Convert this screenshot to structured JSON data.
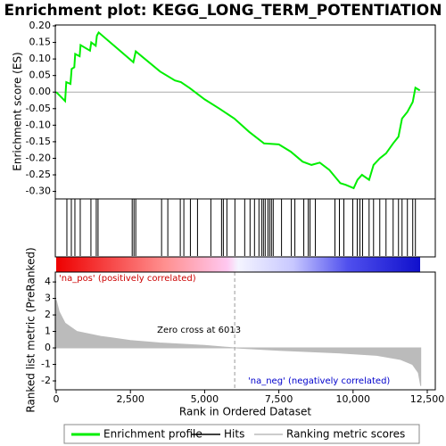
{
  "chart_data": [
    {
      "type": "line",
      "title": "Enrichment plot: KEGG_LONG_TERM_POTENTIATION",
      "ylabel": "Enrichment score (ES)",
      "xlim": [
        0,
        12770
      ],
      "ylim": [
        -0.32,
        0.2
      ],
      "yticks": [
        {
          "value": 0.2,
          "label": "0.20"
        },
        0.15,
        {
          "value": 0.1,
          "label": "0.10"
        },
        0.05,
        {
          "value": 0,
          "label": "0.00"
        },
        -0.05,
        {
          "value": -0.1,
          "label": "-0.10"
        },
        -0.15,
        {
          "value": -0.2,
          "label": "-0.20"
        },
        -0.25,
        {
          "value": -0.3,
          "label": "-0.30"
        }
      ],
      "x": [
        0,
        300,
        340,
        480,
        520,
        610,
        640,
        790,
        820,
        1140,
        1180,
        1330,
        1370,
        1430,
        2600,
        2680,
        3500,
        4000,
        4200,
        4500,
        5000,
        5500,
        6000,
        6500,
        7000,
        7500,
        7900,
        8300,
        8600,
        8880,
        9200,
        9570,
        9750,
        10020,
        10150,
        10300,
        10540,
        10690,
        10900,
        11110,
        11350,
        11530,
        11650,
        11830,
        12010,
        12100,
        12250
      ],
      "series": [
        {
          "name": "Enrichment profile",
          "color": "#00ee00",
          "values": [
            0,
            -0.027,
            0.03,
            0.025,
            0.07,
            0.075,
            0.115,
            0.108,
            0.142,
            0.125,
            0.15,
            0.14,
            0.17,
            0.18,
            0.09,
            0.123,
            0.062,
            0.035,
            0.03,
            0.012,
            -0.022,
            -0.05,
            -0.08,
            -0.12,
            -0.155,
            -0.158,
            -0.18,
            -0.21,
            -0.22,
            -0.213,
            -0.235,
            -0.275,
            -0.28,
            -0.29,
            -0.265,
            -0.25,
            -0.265,
            -0.22,
            -0.2,
            -0.185,
            -0.155,
            -0.135,
            -0.08,
            -0.06,
            -0.03,
            0.013,
            0.005
          ]
        }
      ]
    },
    {
      "type": "rug",
      "xlim": [
        0,
        12770
      ],
      "x": [
        360,
        510,
        630,
        810,
        1170,
        1350,
        1410,
        2560,
        2620,
        2680,
        3550,
        3760,
        4180,
        4300,
        4520,
        4760,
        5210,
        5570,
        5630,
        5750,
        6020,
        6350,
        6530,
        6680,
        6830,
        6920,
        6980,
        7040,
        7130,
        7190,
        7250,
        7310,
        7590,
        7920,
        8040,
        8340,
        8490,
        8550,
        8730,
        9390,
        9540,
        9690,
        9990,
        10140,
        10230,
        10320,
        10540,
        10690,
        10900,
        11110,
        11350,
        11530,
        11650,
        11830,
        12010,
        12100
      ],
      "series": [
        {
          "name": "Hits",
          "color": "#000000"
        }
      ]
    },
    {
      "type": "area",
      "xlabel": "Rank in Ordered Dataset",
      "ylabel": "Ranked list metric (PreRanked)",
      "xlim": [
        0,
        12770
      ],
      "ylim": [
        -2.54,
        4.6
      ],
      "xticks": [
        0,
        {
          "value": 2500,
          "label": "2,500"
        },
        {
          "value": 5000,
          "label": "5,000"
        },
        {
          "value": 7500,
          "label": "7,500"
        },
        {
          "value": 10000,
          "label": "10,000"
        },
        {
          "value": 12500,
          "label": "12,500"
        }
      ],
      "yticks": [
        -2,
        -1,
        0,
        1,
        2,
        3,
        4
      ],
      "x": [
        0,
        100,
        300,
        700,
        1500,
        2500,
        3500,
        5000,
        6013,
        7500,
        9500,
        10800,
        11600,
        12000,
        12200,
        12280
      ],
      "series": [
        {
          "name": "Ranking metric scores",
          "color": "#bbbbbb",
          "values": [
            2.9,
            2.2,
            1.5,
            1.0,
            0.7,
            0.45,
            0.3,
            0.15,
            0,
            -0.15,
            -0.3,
            -0.45,
            -0.7,
            -1.0,
            -1.5,
            -2.3
          ]
        }
      ],
      "zero_cross": 6013,
      "annotations": [
        {
          "text": "'na_pos' (positively correlated)",
          "color": "#cc0000"
        },
        {
          "text": "Zero cross at 6013",
          "color": "#000000"
        },
        {
          "text": "'na_neg' (negatively correlated)",
          "color": "#0000cc"
        }
      ]
    }
  ]
}
